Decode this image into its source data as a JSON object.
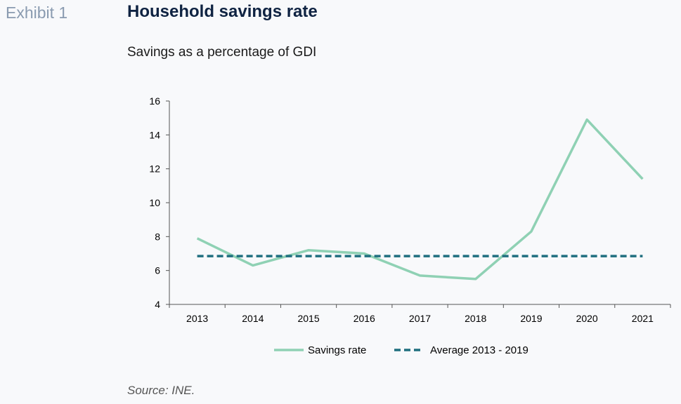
{
  "header": {
    "exhibit": "Exhibit 1",
    "title": "Household savings rate",
    "subtitle": "Savings as a percentage of GDI"
  },
  "footer": {
    "source": "Source: INE."
  },
  "chart_data": {
    "type": "line",
    "title": "Household savings rate",
    "subtitle": "Savings as a percentage of GDI",
    "xlabel": "",
    "ylabel": "",
    "categories": [
      "2013",
      "2014",
      "2015",
      "2016",
      "2017",
      "2018",
      "2019",
      "2020",
      "2021"
    ],
    "yticks": [
      "4",
      "6",
      "8",
      "10",
      "12",
      "14",
      "16"
    ],
    "ylim": [
      4,
      16
    ],
    "grid": false,
    "legend_position": "bottom",
    "series": [
      {
        "name": "Savings rate",
        "style": "solid",
        "color": "#8fd1b4",
        "values": [
          7.9,
          6.3,
          7.2,
          7.0,
          5.7,
          5.5,
          8.3,
          14.9,
          11.4
        ]
      },
      {
        "name": "Average 2013 - 2019",
        "style": "dashed",
        "color": "#1f6f7f",
        "values": [
          6.85,
          6.85,
          6.85,
          6.85,
          6.85,
          6.85,
          6.85,
          6.85,
          6.85
        ]
      }
    ]
  }
}
